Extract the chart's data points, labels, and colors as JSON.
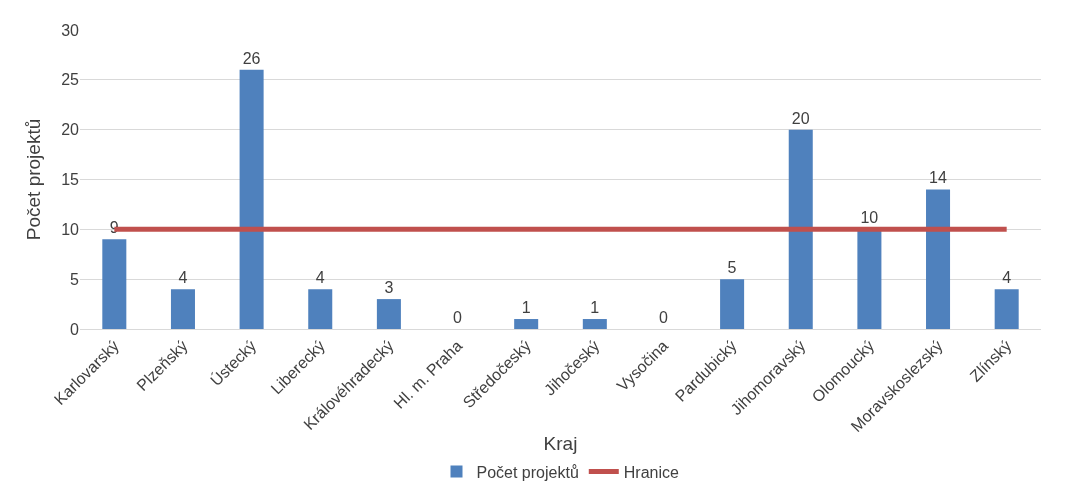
{
  "chart_data": {
    "type": "bar",
    "xlabel": "Kraj",
    "ylabel": "Počet projektů",
    "categories": [
      "Karlovarský",
      "Plzeňský",
      "Ústecký",
      "Liberecký",
      "Královéhradecký",
      "Hl. m. Praha",
      "Středočeský",
      "Jihočeský",
      "Vysočina",
      "Pardubický",
      "Jihomoravský",
      "Olomoucký",
      "Moravskoslezský",
      "Zlínský"
    ],
    "series": [
      {
        "name": "Počet projektů",
        "color": "#4f81bd",
        "values": [
          9,
          4,
          26,
          4,
          3,
          0,
          1,
          1,
          0,
          5,
          20,
          10,
          14,
          4
        ],
        "value_labels": [
          "9",
          "4",
          "26",
          "4",
          "3",
          "0",
          "1",
          "1",
          "0",
          "5",
          "20",
          "10",
          "14",
          "4"
        ]
      },
      {
        "name": "Hranice",
        "type": "line",
        "color": "#c0504d",
        "values": [
          10,
          10,
          10,
          10,
          10,
          10,
          10,
          10,
          10,
          10,
          10,
          10,
          10,
          10
        ]
      }
    ],
    "ylim": [
      0,
      30
    ],
    "yticks": [
      0,
      5,
      10,
      15,
      20,
      25,
      30
    ],
    "grid": "y",
    "legend": "bottom"
  }
}
